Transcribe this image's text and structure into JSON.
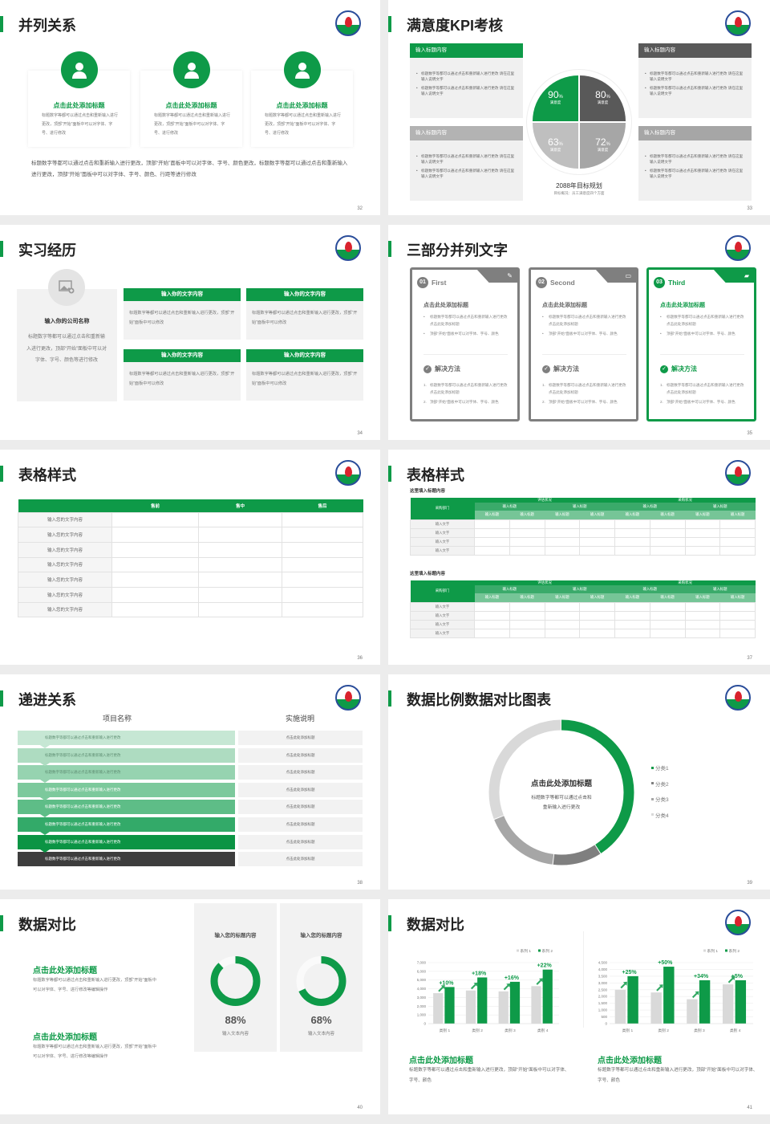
{
  "colors": {
    "accent": "#0e9a48",
    "dark": "#595959",
    "mid": "#a6a6a6",
    "light": "#d9d9d9"
  },
  "s32": {
    "title": "并列关系",
    "page": "32",
    "cards": [
      {
        "icon": "headset-agent-icon",
        "title": "点击此处添加标题",
        "body": "标题数字等都可以通过点击和重新输入进行更改，顶部“开始”面板中可以对字体、字号、进行修改"
      },
      {
        "icon": "business-person-icon",
        "title": "点击此处添加标题",
        "body": "标题数字等都可以通过点击和重新输入进行更改，顶部“开始”面板中可以对字体、字号、进行修改"
      },
      {
        "icon": "presenter-chat-icon",
        "title": "点击此处添加标题",
        "body": "标题数字等都可以通过点击和重新输入进行更改，顶部“开始”面板中可以对字体、字号、进行修改"
      }
    ],
    "footer": "标题数字等都可以通过点击和重新输入进行更改，顶部“开始”面板中可以对字体、字号、颜色更改，标题数字等都可以通过点击和重新输入进行更改，顶部“开始”面板中可以对字体、字号、颜色、行距等进行修改"
  },
  "s33": {
    "title": "满意度KPI考核",
    "page": "33",
    "boxes": [
      {
        "header": "输入标题内容",
        "items": [
          "标题数字等都可以通过点击和重新输入进行更改 请在这里输入说明文字",
          "标题数字等都可以通过点击和重新输入进行更改 请在这里输入说明文字"
        ]
      },
      {
        "header": "输入标题内容",
        "items": [
          "标题数字等都可以通过点击和重新输入进行更改 请在这里输入说明文字",
          "标题数字等都可以通过点击和重新输入进行更改 请在这里输入说明文字"
        ]
      },
      {
        "header": "输入标题内容",
        "items": [
          "标题数字等都可以通过点击和重新输入进行更改 请在这里输入说明文字",
          "标题数字等都可以通过点击和重新输入进行更改 请在这里输入说明文字"
        ]
      },
      {
        "header": "输入标题内容",
        "items": [
          "标题数字等都可以通过点击和重新输入进行更改 请在这里输入说明文字",
          "标题数字等都可以通过点击和重新输入进行更改 请在这里输入说明文字"
        ]
      }
    ],
    "quadrants": [
      {
        "value": "90",
        "unit": "%",
        "label": "满意度",
        "color": "#0e9a48"
      },
      {
        "value": "80",
        "unit": "%",
        "label": "满意度",
        "color": "#595959"
      },
      {
        "value": "63",
        "unit": "%",
        "label": "满意度",
        "color": "#bfbfbf"
      },
      {
        "value": "72",
        "unit": "%",
        "label": "满意度",
        "color": "#a6a6a6"
      }
    ],
    "caption": "2088年目标规划",
    "subcaption": "目标概况：员工满意度四个方面"
  },
  "s34": {
    "title": "实习经历",
    "page": "34",
    "company": {
      "name": "输入你的公司名称",
      "body": "标题数字等都可以通过点击和重新输入进行更改，顶部“开始”面板中可以对字体、字号、颜色等进行修改"
    },
    "boxes": [
      {
        "header": "输入你的文字内容",
        "body": "标题数字等都可以通过点击和重新输入进行更改，顶部“开始”面板中可以修改"
      },
      {
        "header": "输入你的文字内容",
        "body": "标题数字等都可以通过点击和重新输入进行更改，顶部“开始”面板中可以修改"
      },
      {
        "header": "输入你的文字内容",
        "body": "标题数字等都可以通过点击和重新输入进行更改，顶部“开始”面板中可以修改"
      },
      {
        "header": "输入你的文字内容",
        "body": "标题数字等都可以通过点击和重新输入进行更改，顶部“开始”面板中可以修改"
      }
    ]
  },
  "s35": {
    "title": "三部分并列文字",
    "page": "35",
    "cards": [
      {
        "num": "01",
        "name": "First",
        "icon": "notepad-pen-icon",
        "title": "点击此处添加标题",
        "bullets": [
          "标题数字等都可以通过点击和重新输入进行更改 点击此处添加标题",
          "顶部“开始”面板中可以对字体、字号、颜色"
        ],
        "solution": "解决方法",
        "steps": [
          "标题数字等都可以通过点击和重新输入进行更改 点击此处添加标题",
          "顶部“开始”面板中可以对字体、字号、颜色"
        ],
        "color": "#7f7f7f",
        "text_color": "#666666"
      },
      {
        "num": "02",
        "name": "Second",
        "icon": "chat-bubble-icon",
        "title": "点击此处添加标题",
        "bullets": [
          "标题数字等都可以通过点击和重新输入进行更改 点击此处添加标题",
          "顶部“开始”面板中可以对字体、字号、颜色"
        ],
        "solution": "解决方法",
        "steps": [
          "标题数字等都可以通过点击和重新输入进行更改 点击此处添加标题",
          "顶部“开始”面板中可以对字体、字号、颜色"
        ],
        "color": "#7f7f7f",
        "text_color": "#666666"
      },
      {
        "num": "03",
        "name": "Third",
        "icon": "folder-check-icon",
        "title": "点击此处添加标题",
        "bullets": [
          "标题数字等都可以通过点击和重新输入进行更改 点击此处添加标题",
          "顶部“开始”面板中可以对字体、字号、颜色"
        ],
        "solution": "解决方法",
        "steps": [
          "标题数字等都可以通过点击和重新输入进行更改 点击此处添加标题",
          "顶部“开始”面板中可以对字体、字号、颜色"
        ],
        "color": "#0e9a48",
        "text_color": "#0e9a48"
      }
    ]
  },
  "s36": {
    "title": "表格样式",
    "page": "36",
    "columns": [
      "",
      "售前",
      "售中",
      "售后"
    ],
    "rows": [
      "输入您的文字内容",
      "输入您的文字内容",
      "输入您的文字内容",
      "输入您的文字内容",
      "输入您的文字内容",
      "输入您的文字内容",
      "输入您的文字内容"
    ]
  },
  "s37": {
    "title": "表格样式",
    "page": "37",
    "tables": [
      {
        "caption": "这里填入标题内容",
        "dept": "采购部门",
        "groups": [
          "评估状况",
          "采购状况"
        ],
        "sub": [
          "输入标题",
          "输入标题",
          "输入标题",
          "输入标题"
        ],
        "subsub": [
          "输入标题",
          "输入标题",
          "输入标题",
          "输入标题",
          "输入标题",
          "输入标题",
          "输入标题",
          "输入标题"
        ],
        "rows": [
          "输入文字",
          "输入文字",
          "输入文字",
          "输入文字"
        ]
      },
      {
        "caption": "这里填入标题内容",
        "dept": "采购部门",
        "groups": [
          "评估状况",
          "采购状况"
        ],
        "sub": [
          "输入标题",
          "输入标题",
          "输入标题",
          "输入标题"
        ],
        "subsub": [
          "输入标题",
          "输入标题",
          "输入标题",
          "输入标题",
          "输入标题",
          "输入标题",
          "输入标题",
          "输入标题"
        ],
        "rows": [
          "输入文字",
          "输入文字",
          "输入文字",
          "输入文字"
        ]
      }
    ]
  },
  "s38": {
    "title": "递进关系",
    "page": "38",
    "headers": [
      "项目名称",
      "实施说明"
    ],
    "rows": [
      {
        "item": "标题数字等都可以通过点击和重新输入进行更改",
        "note": "点击此处添加标题",
        "color": "#c6e7d4"
      },
      {
        "item": "标题数字等都可以通过点击和重新输入进行更改",
        "note": "点击此处添加标题",
        "color": "#aedcc1"
      },
      {
        "item": "标题数字等都可以通过点击和重新输入进行更改",
        "note": "点击此处添加标题",
        "color": "#96d3b0"
      },
      {
        "item": "标题数字等都可以通过点击和重新输入进行更改",
        "note": "点击此处添加标题",
        "color": "#7cc99c"
      },
      {
        "item": "标题数字等都可以通过点击和重新输入进行更改",
        "note": "点击此处添加标题",
        "color": "#5ebd87"
      },
      {
        "item": "标题数字等都可以通过点击和重新输入进行更改",
        "note": "点击此处添加标题",
        "color": "#33aa69"
      },
      {
        "item": "标题数字等都可以通过点击和重新输入进行更改",
        "note": "点击此处添加标题",
        "color": "#0b9444"
      },
      {
        "item": "标题数字等都可以通过点击和重新输入进行更改",
        "note": "点击此处添加标题",
        "color": "#3d3d3d"
      }
    ]
  },
  "s39": {
    "title": "数据比例数据对比图表",
    "page": "39",
    "center_title": "点击此处添加标题",
    "center_body": [
      "标题数字等都可以通过点击和",
      "重新输入进行更改"
    ]
  },
  "s40": {
    "title": "数据对比",
    "page": "40",
    "items": [
      {
        "title": "点击此处添加标题",
        "body": "标题数字等都可以通过点击和重新输入进行更改，顶部“开始”面板中可以对字体、字号、进行修改等编辑操作"
      },
      {
        "title": "点击此处添加标题",
        "body": "标题数字等都可以通过点击和重新输入进行更改，顶部“开始”面板中可以对字体、字号、进行修改等编辑操作"
      }
    ],
    "cards": [
      {
        "title": "输入您的标题内容",
        "value": "88%",
        "percent": 88,
        "label": "输入文本内容"
      },
      {
        "title": "输入您的标题内容",
        "value": "68%",
        "percent": 68,
        "label": "输入文本内容"
      }
    ]
  },
  "s41": {
    "title": "数据对比",
    "page": "41",
    "texts": [
      {
        "title": "点击此处添加标题",
        "body": "标题数字等都可以通过点击和重新输入进行更改，顶部“开始”面板中可以对字体、字号、颜色"
      },
      {
        "title": "点击此处添加标题",
        "body": "标题数字等都可以通过点击和重新输入进行更改，顶部“开始”面板中可以对字体、字号、颜色"
      }
    ]
  },
  "chart_data": [
    {
      "type": "pie",
      "variant": "donut",
      "categories": [
        "分类1",
        "分类2",
        "分类3",
        "分类4"
      ],
      "values": [
        41,
        11,
        17,
        31
      ],
      "colors": [
        "#0e9a48",
        "#7f7f7f",
        "#a6a6a6",
        "#d9d9d9"
      ],
      "legend": "right"
    },
    {
      "type": "bar",
      "categories": [
        "类别 1",
        "类别 2",
        "类别 3",
        "类别 4"
      ],
      "series": [
        {
          "name": "系列 1",
          "values": [
            3500,
            3800,
            3700,
            4300
          ],
          "color": "#d9d9d9"
        },
        {
          "name": "系列 2",
          "values": [
            4200,
            5300,
            4800,
            6200
          ],
          "color": "#0e9a48"
        }
      ],
      "annotations": [
        "+10%",
        "+18%",
        "+16%",
        "+22%"
      ],
      "ylim": [
        0,
        7000
      ],
      "yticks": [
        "0",
        "1,000",
        "2,000",
        "3,000",
        "4,000",
        "5,000",
        "6,000",
        "7,000"
      ],
      "grid": true,
      "legend": "top-right"
    },
    {
      "type": "bar",
      "categories": [
        "类别 1",
        "类别 2",
        "类别 3",
        "类别 4"
      ],
      "series": [
        {
          "name": "系列 1",
          "values": [
            2500,
            2300,
            1800,
            2900
          ],
          "color": "#d9d9d9"
        },
        {
          "name": "系列 2",
          "values": [
            3500,
            4200,
            3200,
            3200
          ],
          "color": "#0e9a48"
        }
      ],
      "annotations": [
        "+25%",
        "+50%",
        "+34%",
        "+5%"
      ],
      "ylim": [
        0,
        4500
      ],
      "yticks": [
        "0",
        "500",
        "1,000",
        "1,500",
        "2,000",
        "2,500",
        "3,000",
        "3,500",
        "4,000",
        "4,500"
      ],
      "grid": true,
      "legend": "top-right"
    }
  ]
}
